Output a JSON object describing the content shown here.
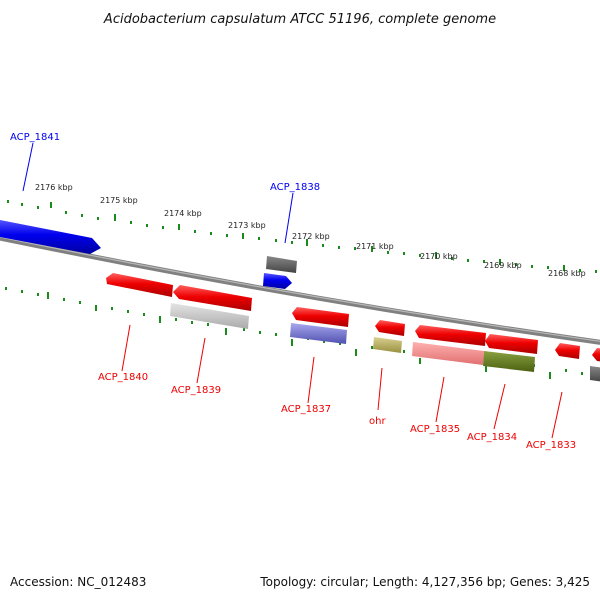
{
  "title": "Acidobacterium capsulatum ATCC 51196, complete genome",
  "footer": {
    "accession": "Accession: NC_012483",
    "topology": "Topology: circular; Length: 4,127,356 bp; Genes: 3,425"
  },
  "ticks": [
    {
      "label": "2176 kbp"
    },
    {
      "label": "2175 kbp"
    },
    {
      "label": "2174 kbp"
    },
    {
      "label": "2173 kbp"
    },
    {
      "label": "2172 kbp"
    },
    {
      "label": "2171 kbp"
    },
    {
      "label": "2170 kbp"
    },
    {
      "label": "2169 kbp"
    },
    {
      "label": "2168 kbp"
    }
  ],
  "genes": [
    {
      "name": "ACP_1841",
      "strand": "forward",
      "color": "#0000ee"
    },
    {
      "name": "ACP_1838",
      "strand": "forward",
      "color": "#0000ee"
    },
    {
      "name": "ACP_1840",
      "strand": "reverse",
      "color": "#ee0000"
    },
    {
      "name": "ACP_1839",
      "strand": "reverse",
      "color": "#ee0000"
    },
    {
      "name": "ACP_1837",
      "strand": "reverse",
      "color": "#ee0000"
    },
    {
      "name": "ohr",
      "strand": "reverse",
      "color": "#ee0000"
    },
    {
      "name": "ACP_1835",
      "strand": "reverse",
      "color": "#ee0000"
    },
    {
      "name": "ACP_1834",
      "strand": "reverse",
      "color": "#ee0000"
    },
    {
      "name": "ACP_1833",
      "strand": "reverse",
      "color": "#ee0000"
    }
  ],
  "colors": {
    "forward": "#0000ee",
    "reverse": "#ee0000",
    "backbone": "#888888",
    "tick": "#1a8a1a"
  }
}
